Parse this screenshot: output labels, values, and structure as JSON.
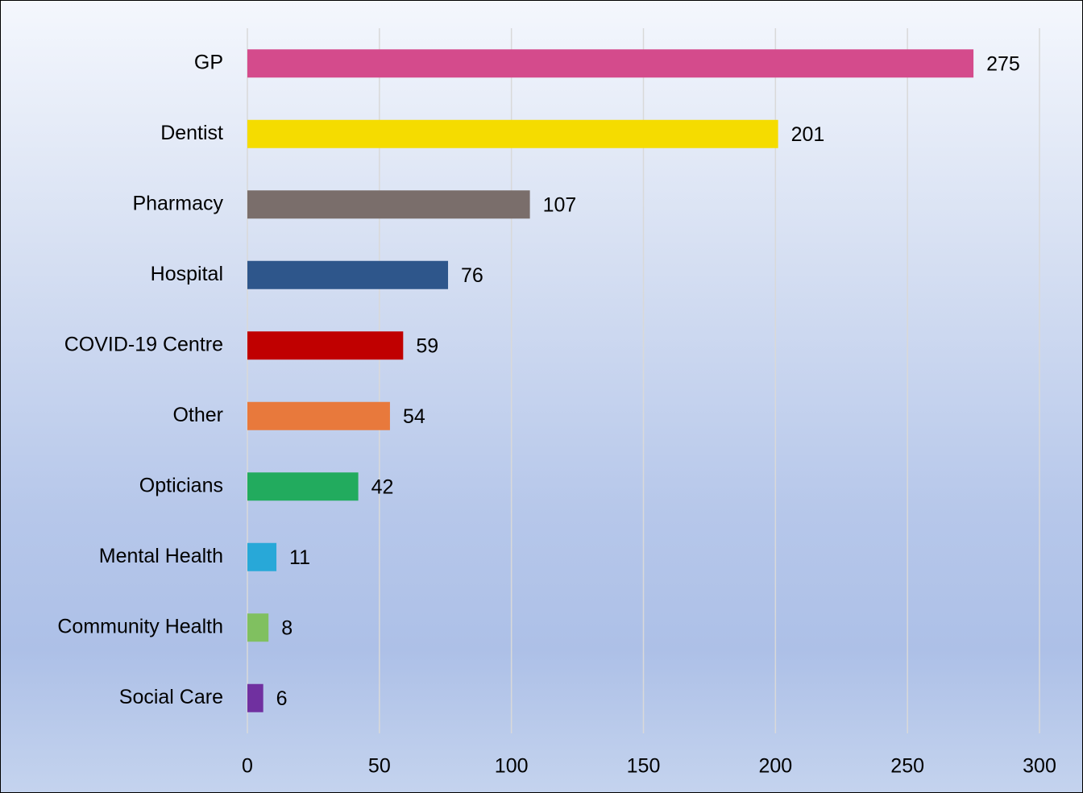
{
  "chart_data": {
    "type": "bar",
    "orientation": "horizontal",
    "categories": [
      "GP",
      "Dentist",
      "Pharmacy",
      "Hospital",
      "COVID-19 Centre",
      "Other",
      "Opticians",
      "Mental Health",
      "Community Health",
      "Social Care"
    ],
    "values": [
      275,
      201,
      107,
      76,
      59,
      54,
      42,
      11,
      8,
      6
    ],
    "colors": [
      "#d44b8c",
      "#f5dc00",
      "#7a6e6b",
      "#2e568b",
      "#c00000",
      "#e8793c",
      "#22ab5e",
      "#28a8d8",
      "#80c060",
      "#7030a0"
    ],
    "xlim": [
      0,
      300
    ],
    "xticks": [
      0,
      50,
      100,
      150,
      200,
      250,
      300
    ],
    "grid": true
  }
}
